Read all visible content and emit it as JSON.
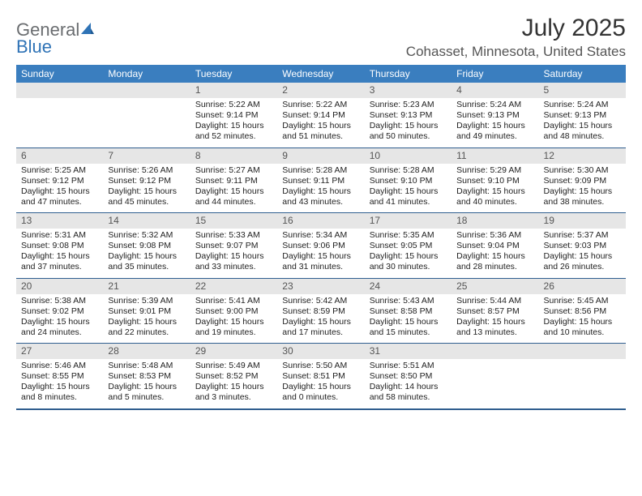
{
  "brand": {
    "word1": "General",
    "word2": "Blue"
  },
  "title": "July 2025",
  "location": "Cohasset, Minnesota, United States",
  "colors": {
    "header_bg": "#3a7ebf",
    "header_text": "#ffffff",
    "daynum_bg": "#e6e6e6",
    "daynum_text": "#555555",
    "rule": "#2f5e8f",
    "brand_gray": "#6a6d70",
    "brand_blue": "#2f73b6",
    "page_bg": "#ffffff"
  },
  "typography": {
    "title_fontsize_pt": 22,
    "location_fontsize_pt": 13,
    "dow_fontsize_pt": 9,
    "daynum_fontsize_pt": 9,
    "body_fontsize_pt": 8,
    "font_family": "Arial"
  },
  "dow": [
    "Sunday",
    "Monday",
    "Tuesday",
    "Wednesday",
    "Thursday",
    "Friday",
    "Saturday"
  ],
  "labels": {
    "sunrise": "Sunrise:",
    "sunset": "Sunset:",
    "daylight": "Daylight:"
  },
  "weeks": [
    [
      null,
      null,
      {
        "d": "1",
        "sunrise": "5:22 AM",
        "sunset": "9:14 PM",
        "daylight": "15 hours and 52 minutes."
      },
      {
        "d": "2",
        "sunrise": "5:22 AM",
        "sunset": "9:14 PM",
        "daylight": "15 hours and 51 minutes."
      },
      {
        "d": "3",
        "sunrise": "5:23 AM",
        "sunset": "9:13 PM",
        "daylight": "15 hours and 50 minutes."
      },
      {
        "d": "4",
        "sunrise": "5:24 AM",
        "sunset": "9:13 PM",
        "daylight": "15 hours and 49 minutes."
      },
      {
        "d": "5",
        "sunrise": "5:24 AM",
        "sunset": "9:13 PM",
        "daylight": "15 hours and 48 minutes."
      }
    ],
    [
      {
        "d": "6",
        "sunrise": "5:25 AM",
        "sunset": "9:12 PM",
        "daylight": "15 hours and 47 minutes."
      },
      {
        "d": "7",
        "sunrise": "5:26 AM",
        "sunset": "9:12 PM",
        "daylight": "15 hours and 45 minutes."
      },
      {
        "d": "8",
        "sunrise": "5:27 AM",
        "sunset": "9:11 PM",
        "daylight": "15 hours and 44 minutes."
      },
      {
        "d": "9",
        "sunrise": "5:28 AM",
        "sunset": "9:11 PM",
        "daylight": "15 hours and 43 minutes."
      },
      {
        "d": "10",
        "sunrise": "5:28 AM",
        "sunset": "9:10 PM",
        "daylight": "15 hours and 41 minutes."
      },
      {
        "d": "11",
        "sunrise": "5:29 AM",
        "sunset": "9:10 PM",
        "daylight": "15 hours and 40 minutes."
      },
      {
        "d": "12",
        "sunrise": "5:30 AM",
        "sunset": "9:09 PM",
        "daylight": "15 hours and 38 minutes."
      }
    ],
    [
      {
        "d": "13",
        "sunrise": "5:31 AM",
        "sunset": "9:08 PM",
        "daylight": "15 hours and 37 minutes."
      },
      {
        "d": "14",
        "sunrise": "5:32 AM",
        "sunset": "9:08 PM",
        "daylight": "15 hours and 35 minutes."
      },
      {
        "d": "15",
        "sunrise": "5:33 AM",
        "sunset": "9:07 PM",
        "daylight": "15 hours and 33 minutes."
      },
      {
        "d": "16",
        "sunrise": "5:34 AM",
        "sunset": "9:06 PM",
        "daylight": "15 hours and 31 minutes."
      },
      {
        "d": "17",
        "sunrise": "5:35 AM",
        "sunset": "9:05 PM",
        "daylight": "15 hours and 30 minutes."
      },
      {
        "d": "18",
        "sunrise": "5:36 AM",
        "sunset": "9:04 PM",
        "daylight": "15 hours and 28 minutes."
      },
      {
        "d": "19",
        "sunrise": "5:37 AM",
        "sunset": "9:03 PM",
        "daylight": "15 hours and 26 minutes."
      }
    ],
    [
      {
        "d": "20",
        "sunrise": "5:38 AM",
        "sunset": "9:02 PM",
        "daylight": "15 hours and 24 minutes."
      },
      {
        "d": "21",
        "sunrise": "5:39 AM",
        "sunset": "9:01 PM",
        "daylight": "15 hours and 22 minutes."
      },
      {
        "d": "22",
        "sunrise": "5:41 AM",
        "sunset": "9:00 PM",
        "daylight": "15 hours and 19 minutes."
      },
      {
        "d": "23",
        "sunrise": "5:42 AM",
        "sunset": "8:59 PM",
        "daylight": "15 hours and 17 minutes."
      },
      {
        "d": "24",
        "sunrise": "5:43 AM",
        "sunset": "8:58 PM",
        "daylight": "15 hours and 15 minutes."
      },
      {
        "d": "25",
        "sunrise": "5:44 AM",
        "sunset": "8:57 PM",
        "daylight": "15 hours and 13 minutes."
      },
      {
        "d": "26",
        "sunrise": "5:45 AM",
        "sunset": "8:56 PM",
        "daylight": "15 hours and 10 minutes."
      }
    ],
    [
      {
        "d": "27",
        "sunrise": "5:46 AM",
        "sunset": "8:55 PM",
        "daylight": "15 hours and 8 minutes."
      },
      {
        "d": "28",
        "sunrise": "5:48 AM",
        "sunset": "8:53 PM",
        "daylight": "15 hours and 5 minutes."
      },
      {
        "d": "29",
        "sunrise": "5:49 AM",
        "sunset": "8:52 PM",
        "daylight": "15 hours and 3 minutes."
      },
      {
        "d": "30",
        "sunrise": "5:50 AM",
        "sunset": "8:51 PM",
        "daylight": "15 hours and 0 minutes."
      },
      {
        "d": "31",
        "sunrise": "5:51 AM",
        "sunset": "8:50 PM",
        "daylight": "14 hours and 58 minutes."
      },
      null,
      null
    ]
  ]
}
